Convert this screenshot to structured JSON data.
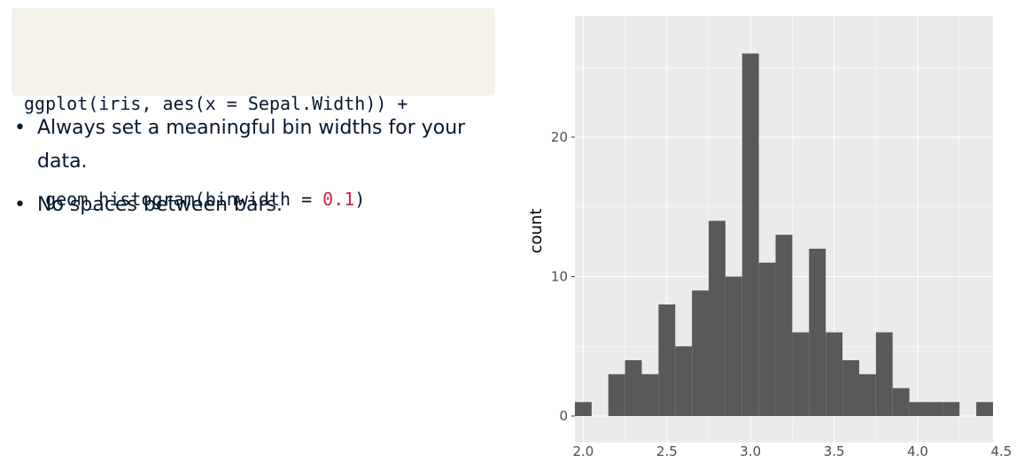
{
  "code": {
    "line1": "ggplot(iris, aes(x = Sepal.Width)) +",
    "line2_prefix": "  geom_histogram(binwidth = ",
    "line2_number": "0.1",
    "line2_suffix": ")"
  },
  "bullets": [
    "Always set a meaningful bin widths for your data.",
    "No spaces between bars."
  ],
  "chart_data": {
    "type": "bar",
    "ylabel": "count",
    "xlabel": "",
    "binwidth": 0.1,
    "bins": [
      2.0,
      2.2,
      2.3,
      2.4,
      2.5,
      2.6,
      2.7,
      2.8,
      2.9,
      3.0,
      3.1,
      3.2,
      3.3,
      3.4,
      3.5,
      3.6,
      3.7,
      3.8,
      3.9,
      4.0,
      4.1,
      4.2,
      4.4
    ],
    "values": [
      1,
      3,
      4,
      3,
      8,
      5,
      9,
      14,
      10,
      26,
      11,
      13,
      6,
      12,
      6,
      4,
      3,
      6,
      2,
      1,
      1,
      1,
      1
    ],
    "xlim": [
      1.95,
      4.45
    ],
    "ylim": [
      0,
      27.3
    ],
    "yticks": [
      0,
      10,
      20
    ],
    "xticks": [
      2.0,
      2.5,
      3.0,
      3.5,
      4.0,
      4.5
    ],
    "xtick_labels": [
      "2.0",
      "2.5",
      "3.0",
      "3.5",
      "4.0",
      "4.5"
    ],
    "grid": true,
    "colors": {
      "bar": "#595959",
      "panel": "#ebebeb",
      "grid": "#ffffff",
      "axis_text": "#4d4d4d"
    }
  }
}
